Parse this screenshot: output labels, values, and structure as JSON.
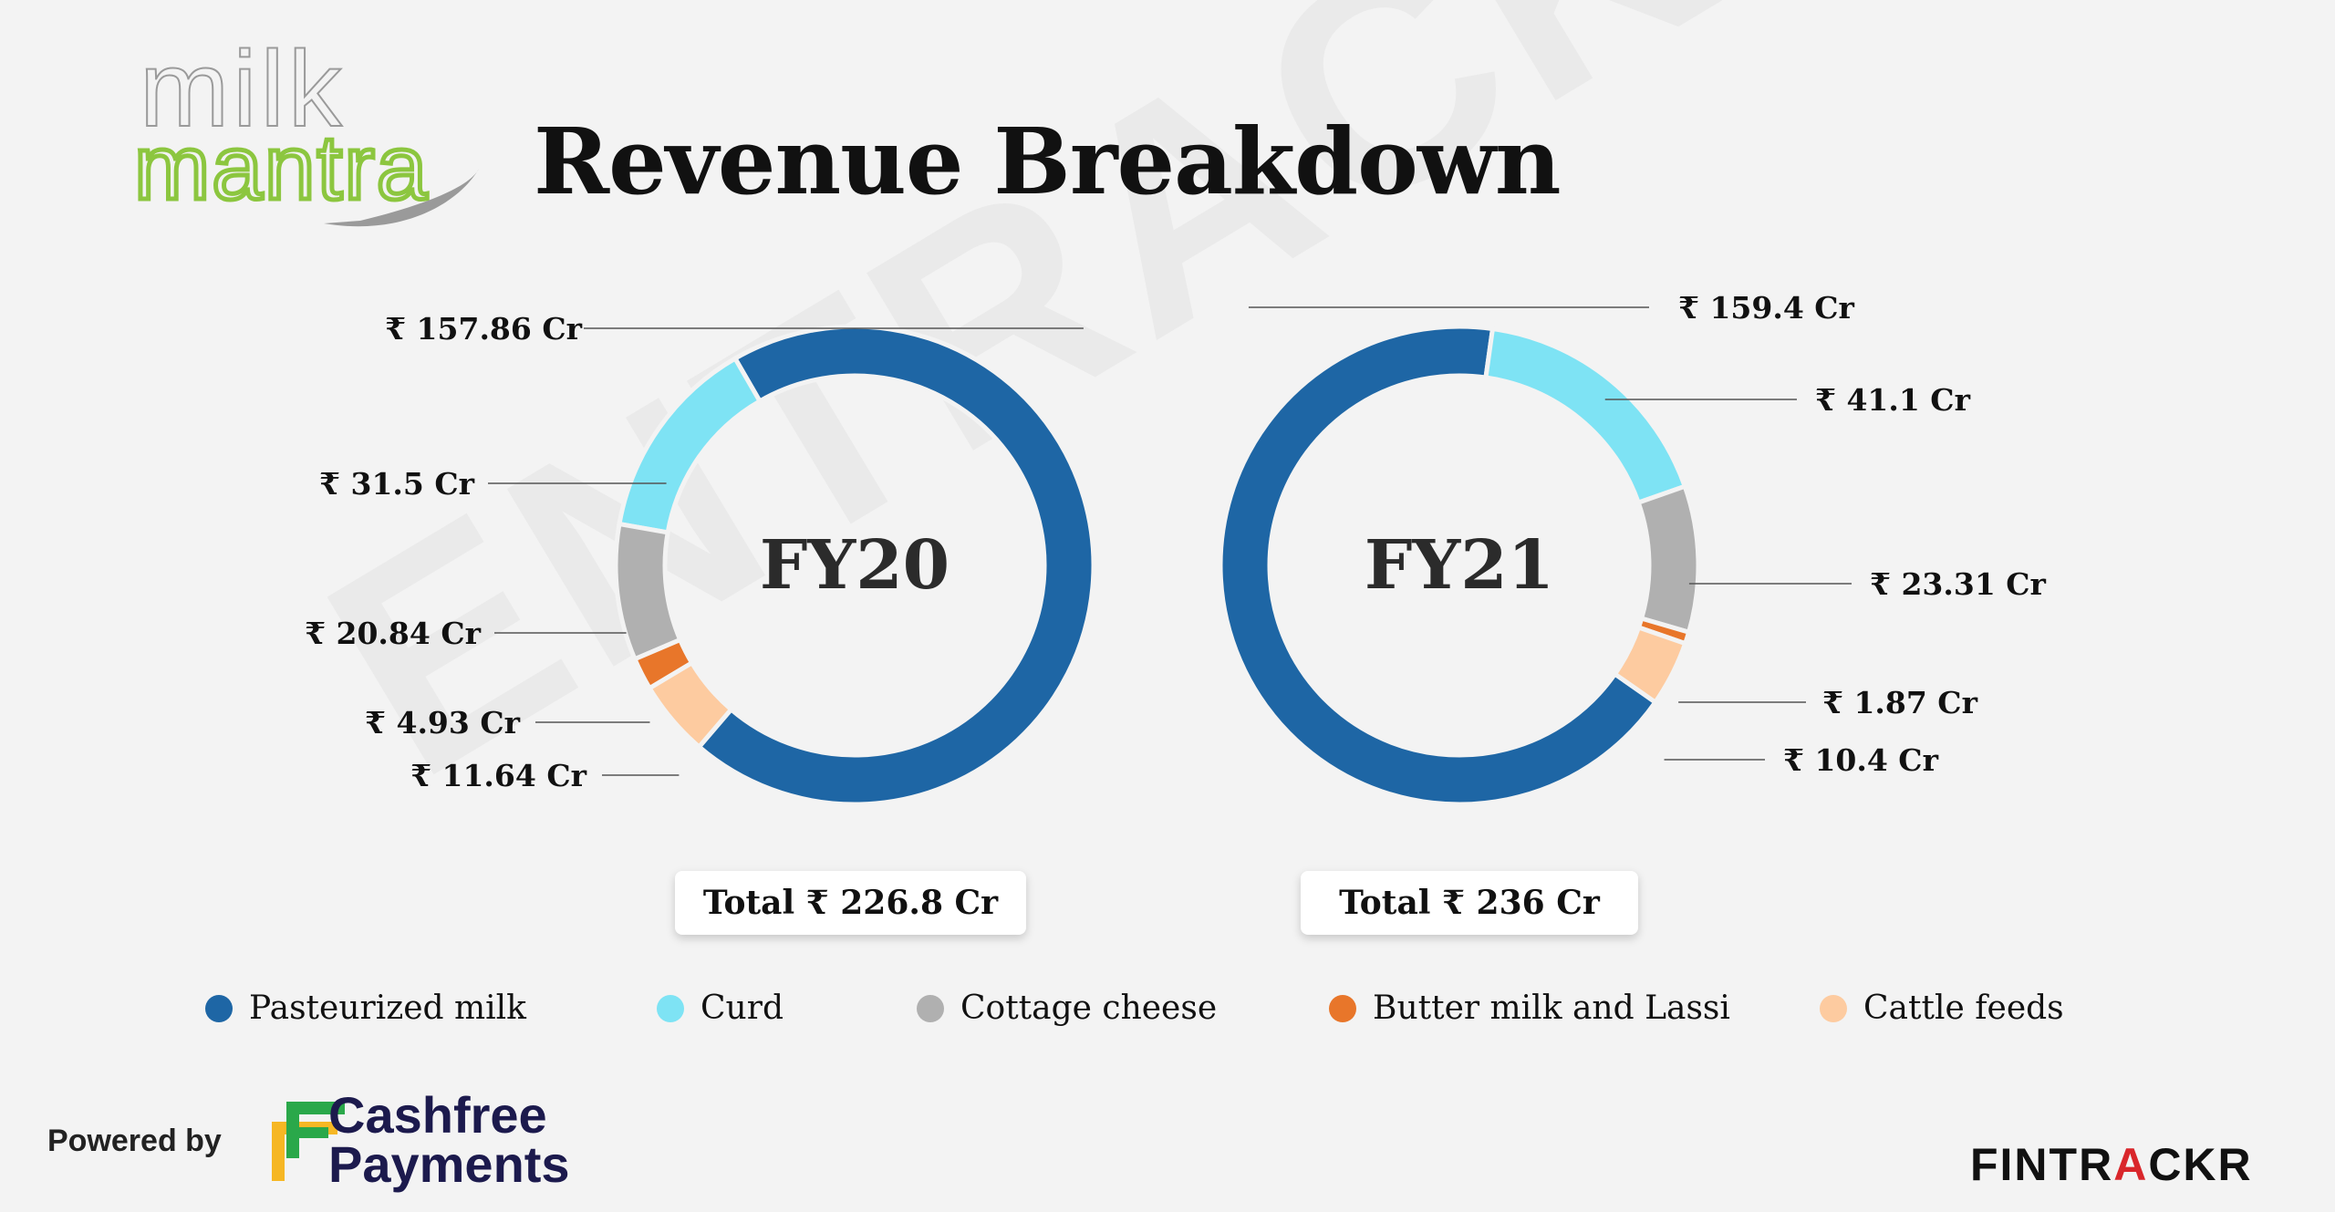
{
  "watermark": "ENTRACKR",
  "brand": {
    "logo_line1": "milk",
    "logo_line2": "mantra"
  },
  "title": "Revenue Breakdown",
  "colors": {
    "pasteurized": "#1e66a5",
    "curd": "#7ee3f4",
    "cottage": "#b0b0b0",
    "buttermilk": "#e8762a",
    "cattle": "#fdcba0"
  },
  "chart_data": [
    {
      "type": "pie",
      "variant": "donut",
      "title": "FY20",
      "unit": "₹ Cr",
      "categories": [
        "Pasteurized milk",
        "Curd",
        "Cottage cheese",
        "Butter milk and Lassi",
        "Cattle feeds"
      ],
      "values": [
        157.86,
        31.5,
        20.84,
        4.93,
        11.64
      ],
      "labels": [
        "₹ 157.86 Cr",
        "₹ 31.5 Cr",
        "₹ 20.84 Cr",
        "₹ 4.93 Cr",
        "₹ 11.64 Cr"
      ],
      "total_label": "Total ₹ 226.8 Cr"
    },
    {
      "type": "pie",
      "variant": "donut",
      "title": "FY21",
      "unit": "₹ Cr",
      "categories": [
        "Pasteurized milk",
        "Curd",
        "Cottage cheese",
        "Butter milk and Lassi",
        "Cattle feeds"
      ],
      "values": [
        159.4,
        41.1,
        23.31,
        1.87,
        10.4
      ],
      "labels": [
        "₹ 159.4 Cr",
        "₹ 41.1 Cr",
        "₹ 23.31 Cr",
        "₹ 1.87 Cr",
        "₹ 10.4 Cr"
      ],
      "total_label": "Total ₹ 236 Cr"
    }
  ],
  "legend": [
    {
      "label": "Pasteurized milk",
      "color": "#1e66a5"
    },
    {
      "label": "Curd",
      "color": "#7ee3f4"
    },
    {
      "label": "Cottage cheese",
      "color": "#b0b0b0"
    },
    {
      "label": "Butter milk and Lassi",
      "color": "#e8762a"
    },
    {
      "label": "Cattle feeds",
      "color": "#fdcba0"
    }
  ],
  "footer": {
    "powered_by": "Powered by",
    "cashfree_line1": "Cashfree",
    "cashfree_line2": "Payments",
    "fintrackr_part1": "FINTR",
    "fintrackr_accent": "A",
    "fintrackr_part2": "CKR"
  }
}
